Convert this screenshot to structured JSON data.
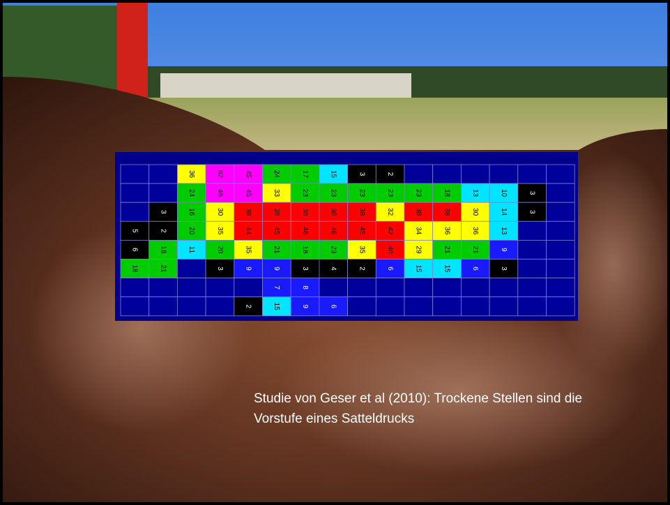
{
  "grid": {
    "rows": [
      [
        "#00009a",
        "#00009a",
        {
          "text": 36,
          "color": "#ffff00"
        },
        {
          "text": 62,
          "color": "#ff00ff"
        },
        {
          "text": 45,
          "color": "#ff00ff"
        },
        {
          "text": 24,
          "color": "#00cc00"
        },
        {
          "text": 17,
          "color": "#00cc00"
        },
        {
          "text": 15,
          "color": "#00e5ff"
        },
        {
          "text": 3,
          "color": "#000000"
        },
        {
          "text": 2,
          "color": "#000000"
        },
        "#00009a",
        "#00009a",
        "#00009a",
        "#00009a",
        "#00009a",
        "#00009a"
      ],
      [
        "#00009a",
        "#00009a",
        {
          "text": 24,
          "color": "#00cc00"
        },
        {
          "text": 46,
          "color": "#ff00ff"
        },
        {
          "text": 45,
          "color": "#ff00ff"
        },
        {
          "text": 33,
          "color": "#ffff00"
        },
        {
          "text": 23,
          "color": "#00cc00"
        },
        {
          "text": 23,
          "color": "#00cc00"
        },
        {
          "text": 23,
          "color": "#00cc00"
        },
        {
          "text": 23,
          "color": "#00cc00"
        },
        {
          "text": 23,
          "color": "#00cc00"
        },
        {
          "text": 18,
          "color": "#00cc00"
        },
        {
          "text": 13,
          "color": "#00e5ff"
        },
        {
          "text": 10,
          "color": "#00e5ff"
        },
        {
          "text": 3,
          "color": "#000000"
        },
        "#00009a"
      ],
      [
        "#00009a",
        {
          "text": 3,
          "color": "#000000"
        },
        {
          "text": 16,
          "color": "#00cc00"
        },
        {
          "text": 30,
          "color": "#ffff00"
        },
        {
          "text": 38,
          "color": "#ff0000"
        },
        {
          "text": 38,
          "color": "#ff0000"
        },
        {
          "text": 38,
          "color": "#ff0000"
        },
        {
          "text": 38,
          "color": "#ff0000"
        },
        {
          "text": 38,
          "color": "#ff0000"
        },
        {
          "text": 32,
          "color": "#ffff00"
        },
        {
          "text": 38,
          "color": "#ff0000"
        },
        {
          "text": 38,
          "color": "#ff0000"
        },
        {
          "text": 30,
          "color": "#ffff00"
        },
        {
          "text": 14,
          "color": "#00e5ff"
        },
        {
          "text": 3,
          "color": "#000000"
        },
        "#00009a"
      ],
      [
        {
          "text": 5,
          "color": "#000000"
        },
        {
          "text": 2,
          "color": "#000000"
        },
        {
          "text": 20,
          "color": "#00cc00"
        },
        {
          "text": 35,
          "color": "#ffff00"
        },
        {
          "text": 44,
          "color": "#ff0000"
        },
        {
          "text": 45,
          "color": "#ff0000"
        },
        {
          "text": 46,
          "color": "#ff0000"
        },
        {
          "text": 46,
          "color": "#ff0000"
        },
        {
          "text": 45,
          "color": "#ff0000"
        },
        {
          "text": 42,
          "color": "#ff0000"
        },
        {
          "text": 34,
          "color": "#ffff00"
        },
        {
          "text": 36,
          "color": "#ffff00"
        },
        {
          "text": 36,
          "color": "#ffff00"
        },
        {
          "text": 13,
          "color": "#00e5ff"
        },
        "#00009a",
        "#00009a"
      ],
      [
        {
          "text": 6,
          "color": "#000000"
        },
        {
          "text": 18,
          "color": "#00cc00"
        },
        {
          "text": 11,
          "color": "#00e5ff"
        },
        {
          "text": 20,
          "color": "#00cc00"
        },
        {
          "text": 35,
          "color": "#ffff00"
        },
        {
          "text": 21,
          "color": "#00cc00"
        },
        {
          "text": 18,
          "color": "#00cc00"
        },
        {
          "text": 23,
          "color": "#00cc00"
        },
        {
          "text": 35,
          "color": "#ffff00"
        },
        {
          "text": 40,
          "color": "#ff0000"
        },
        {
          "text": 29,
          "color": "#ffff00"
        },
        {
          "text": 21,
          "color": "#00cc00"
        },
        {
          "text": 21,
          "color": "#00cc00"
        },
        {
          "text": 9,
          "color": "#1a1aff"
        },
        "#00009a",
        "#00009a"
      ],
      [
        {
          "text": 18,
          "color": "#00cc00"
        },
        {
          "text": 21,
          "color": "#00cc00"
        },
        "#00009a",
        {
          "text": 3,
          "color": "#000000"
        },
        {
          "text": 9,
          "color": "#1a1aff"
        },
        {
          "text": 9,
          "color": "#1a1aff"
        },
        {
          "text": 3,
          "color": "#000000"
        },
        {
          "text": 4,
          "color": "#000000"
        },
        {
          "text": 2,
          "color": "#000000"
        },
        {
          "text": 6,
          "color": "#1a1aff"
        },
        {
          "text": 15,
          "color": "#00e5ff"
        },
        {
          "text": 15,
          "color": "#00e5ff"
        },
        {
          "text": 6,
          "color": "#1a1aff"
        },
        {
          "text": 3,
          "color": "#000000"
        },
        "#00009a",
        "#00009a"
      ],
      [
        "#00009a",
        "#00009a",
        "#00009a",
        "#00009a",
        "#00009a",
        {
          "text": 7,
          "color": "#1a1aff"
        },
        {
          "text": 8,
          "color": "#1a1aff"
        },
        "#00009a",
        "#00009a",
        "#00009a",
        "#00009a",
        "#00009a",
        "#00009a",
        "#00009a",
        "#00009a",
        "#00009a"
      ],
      [
        "#00009a",
        "#00009a",
        "#00009a",
        "#00009a",
        {
          "text": 2,
          "color": "#000000"
        },
        {
          "text": 15,
          "color": "#00e5ff"
        },
        {
          "text": 9,
          "color": "#1a1aff"
        },
        {
          "text": 6,
          "color": "#1a1aff"
        },
        "#00009a",
        "#00009a",
        "#00009a",
        "#00009a",
        "#00009a",
        "#00009a",
        "#00009a",
        "#00009a"
      ]
    ]
  },
  "caption": {
    "line1": "Studie von Geser et al (2010): Trockene Stellen sind die",
    "line2": "Vorstufe eines Satteldrucks"
  }
}
